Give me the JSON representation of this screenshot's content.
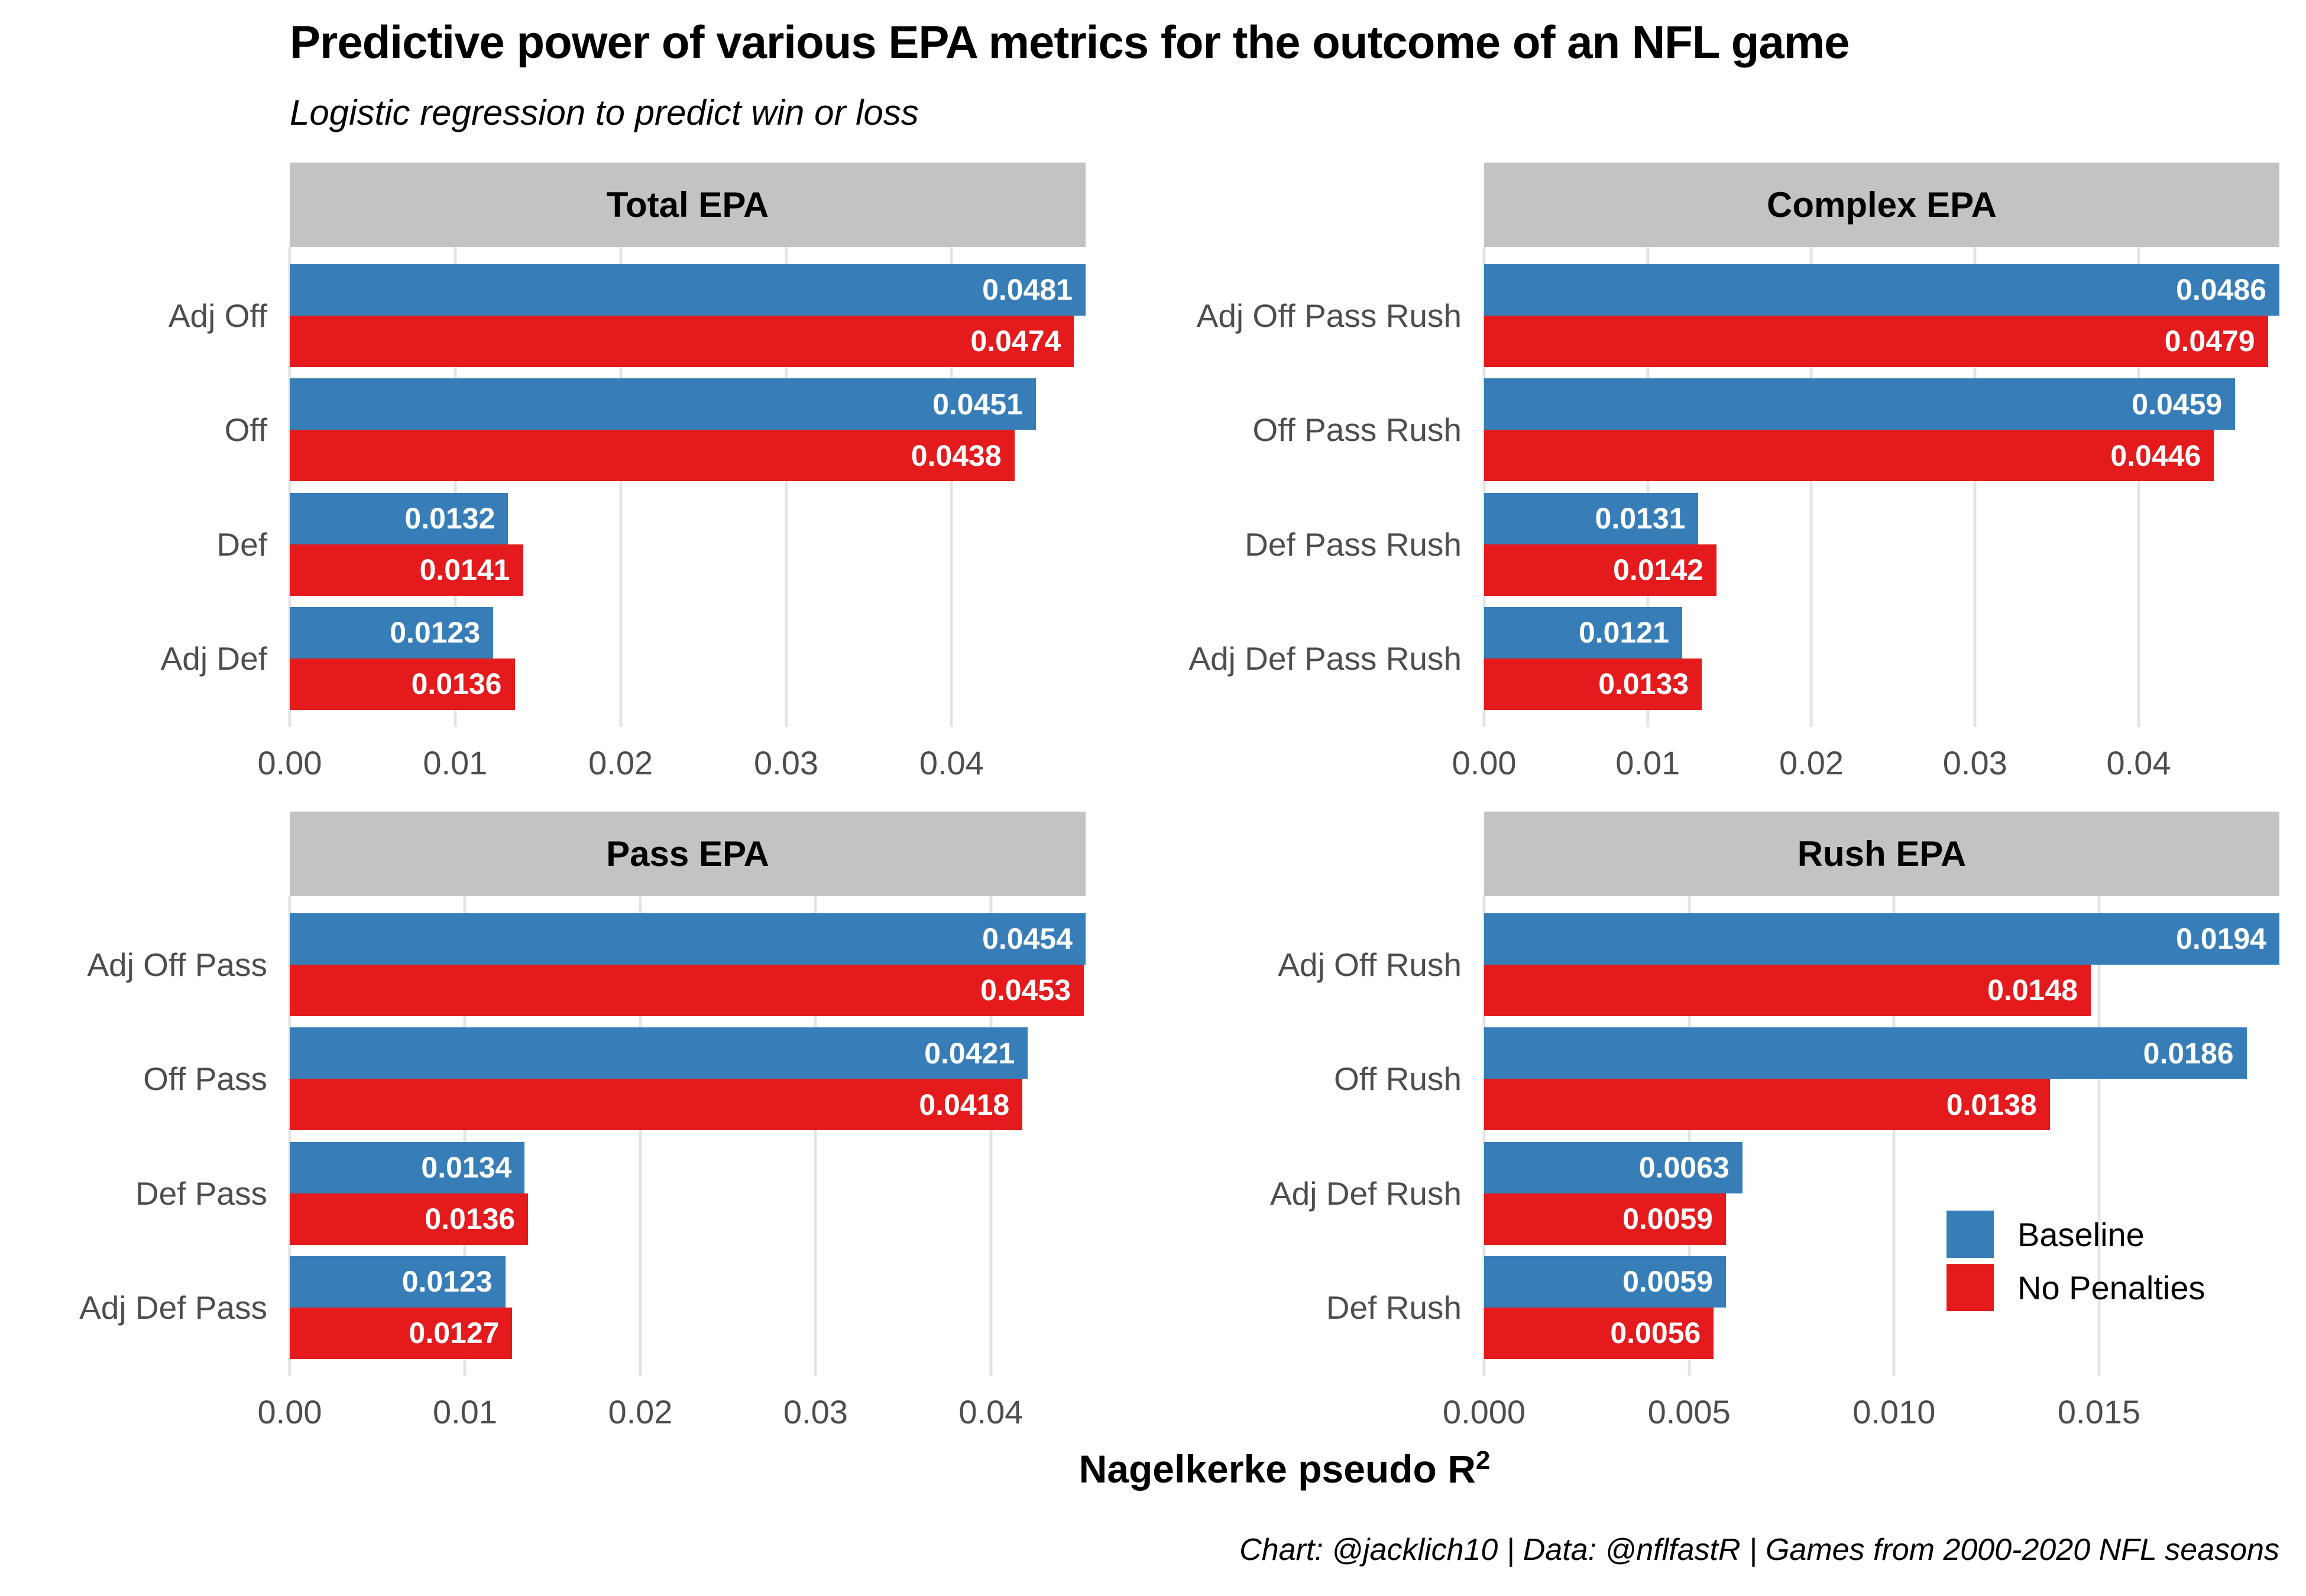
{
  "title": "Predictive power of various EPA metrics for the outcome of an NFL game",
  "subtitle": "Logistic regression to predict win or loss",
  "caption": "Chart: @jacklich10 | Data: @nflfastR | Games from 2000-2020 NFL seasons",
  "x_axis_title": "Nagelkerke pseudo R",
  "x_axis_title_sup": "2",
  "colors": {
    "baseline": "#377EB8",
    "no_penalties": "#E41A1C",
    "strip_background": "#C3C3C3",
    "gridline": "#E4E4E4",
    "axis_text": "#4D4D4D",
    "bar_label_text": "#FFFFFF"
  },
  "legend": {
    "items": [
      {
        "label": "Baseline",
        "color": "#377EB8"
      },
      {
        "label": "No Penalties",
        "color": "#E41A1C"
      }
    ]
  },
  "chart_data": [
    {
      "type": "bar",
      "orientation": "horizontal",
      "panel_title": "Total EPA",
      "categories": [
        "Adj Off",
        "Off",
        "Def",
        "Adj Def"
      ],
      "series": [
        {
          "name": "Baseline",
          "values": [
            0.0481,
            0.0451,
            0.0132,
            0.0123
          ],
          "labels": [
            "0.0481",
            "0.0451",
            "0.0132",
            "0.0123"
          ]
        },
        {
          "name": "No Penalties",
          "values": [
            0.0474,
            0.0438,
            0.0141,
            0.0136
          ],
          "labels": [
            "0.0474",
            "0.0438",
            "0.0141",
            "0.0136"
          ]
        }
      ],
      "xlim": [
        0,
        0.0481
      ],
      "x_ticks": [
        {
          "label": "0.00",
          "value": 0.0
        },
        {
          "label": "0.01",
          "value": 0.01
        },
        {
          "label": "0.02",
          "value": 0.02
        },
        {
          "label": "0.03",
          "value": 0.03
        },
        {
          "label": "0.04",
          "value": 0.04
        }
      ],
      "grid": "vertical-major-only"
    },
    {
      "type": "bar",
      "orientation": "horizontal",
      "panel_title": "Complex EPA",
      "categories": [
        "Adj Off Pass Rush",
        "Off Pass Rush",
        "Def Pass Rush",
        "Adj Def Pass Rush"
      ],
      "series": [
        {
          "name": "Baseline",
          "values": [
            0.0486,
            0.0459,
            0.0131,
            0.0121
          ],
          "labels": [
            "0.0486",
            "0.0459",
            "0.0131",
            "0.0121"
          ]
        },
        {
          "name": "No Penalties",
          "values": [
            0.0479,
            0.0446,
            0.0142,
            0.0133
          ],
          "labels": [
            "0.0479",
            "0.0446",
            "0.0142",
            "0.0133"
          ]
        }
      ],
      "xlim": [
        0,
        0.0486
      ],
      "x_ticks": [
        {
          "label": "0.00",
          "value": 0.0
        },
        {
          "label": "0.01",
          "value": 0.01
        },
        {
          "label": "0.02",
          "value": 0.02
        },
        {
          "label": "0.03",
          "value": 0.03
        },
        {
          "label": "0.04",
          "value": 0.04
        }
      ],
      "grid": "vertical-major-only"
    },
    {
      "type": "bar",
      "orientation": "horizontal",
      "panel_title": "Pass EPA",
      "categories": [
        "Adj Off Pass",
        "Off Pass",
        "Def Pass",
        "Adj Def Pass"
      ],
      "series": [
        {
          "name": "Baseline",
          "values": [
            0.0454,
            0.0421,
            0.0134,
            0.0123
          ],
          "labels": [
            "0.0454",
            "0.0421",
            "0.0134",
            "0.0123"
          ]
        },
        {
          "name": "No Penalties",
          "values": [
            0.0453,
            0.0418,
            0.0136,
            0.0127
          ],
          "labels": [
            "0.0453",
            "0.0418",
            "0.0136",
            "0.0127"
          ]
        }
      ],
      "xlim": [
        0,
        0.0454
      ],
      "x_ticks": [
        {
          "label": "0.00",
          "value": 0.0
        },
        {
          "label": "0.01",
          "value": 0.01
        },
        {
          "label": "0.02",
          "value": 0.02
        },
        {
          "label": "0.03",
          "value": 0.03
        },
        {
          "label": "0.04",
          "value": 0.04
        }
      ],
      "grid": "vertical-major-only"
    },
    {
      "type": "bar",
      "orientation": "horizontal",
      "panel_title": "Rush EPA",
      "categories": [
        "Adj Off Rush",
        "Off Rush",
        "Adj Def Rush",
        "Def Rush"
      ],
      "series": [
        {
          "name": "Baseline",
          "values": [
            0.0194,
            0.0186,
            0.0063,
            0.0059
          ],
          "labels": [
            "0.0194",
            "0.0186",
            "0.0063",
            "0.0059"
          ]
        },
        {
          "name": "No Penalties",
          "values": [
            0.0148,
            0.0138,
            0.0059,
            0.0056
          ],
          "labels": [
            "0.0148",
            "0.0138",
            "0.0059",
            "0.0056"
          ]
        }
      ],
      "xlim": [
        0,
        0.0194
      ],
      "x_ticks": [
        {
          "label": "0.000",
          "value": 0.0
        },
        {
          "label": "0.005",
          "value": 0.005
        },
        {
          "label": "0.010",
          "value": 0.01
        },
        {
          "label": "0.015",
          "value": 0.015
        }
      ],
      "grid": "vertical-major-only"
    }
  ]
}
